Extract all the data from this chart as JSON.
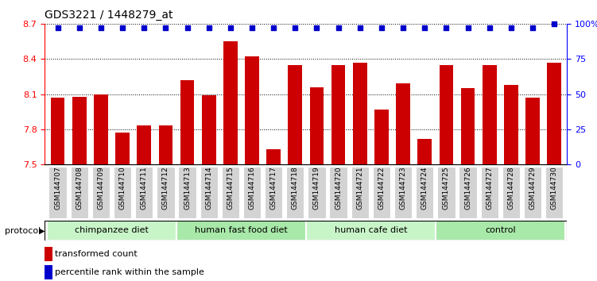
{
  "title": "GDS3221 / 1448279_at",
  "samples": [
    "GSM144707",
    "GSM144708",
    "GSM144709",
    "GSM144710",
    "GSM144711",
    "GSM144712",
    "GSM144713",
    "GSM144714",
    "GSM144715",
    "GSM144716",
    "GSM144717",
    "GSM144718",
    "GSM144719",
    "GSM144720",
    "GSM144721",
    "GSM144722",
    "GSM144723",
    "GSM144724",
    "GSM144725",
    "GSM144726",
    "GSM144727",
    "GSM144728",
    "GSM144729",
    "GSM144730"
  ],
  "bar_values": [
    8.07,
    8.08,
    8.1,
    7.77,
    7.83,
    7.83,
    8.22,
    8.09,
    8.55,
    8.42,
    7.63,
    8.35,
    8.16,
    8.35,
    8.37,
    7.97,
    8.19,
    7.72,
    8.35,
    8.15,
    8.35,
    8.18,
    8.07,
    8.37
  ],
  "percentile_values": [
    97,
    97,
    97,
    97,
    97,
    97,
    97,
    97,
    97,
    97,
    97,
    97,
    97,
    97,
    97,
    97,
    97,
    97,
    97,
    97,
    97,
    97,
    97,
    100
  ],
  "groups": [
    {
      "label": "chimpanzee diet",
      "start": 0,
      "end": 5
    },
    {
      "label": "human fast food diet",
      "start": 6,
      "end": 11
    },
    {
      "label": "human cafe diet",
      "start": 12,
      "end": 17
    },
    {
      "label": "control",
      "start": 18,
      "end": 23
    }
  ],
  "group_colors": [
    "#c8f5c8",
    "#a8e8a8",
    "#c8f5c8",
    "#a8e8a8"
  ],
  "ylim": [
    7.5,
    8.7
  ],
  "yticks": [
    7.5,
    7.8,
    8.1,
    8.4,
    8.7
  ],
  "ytick_labels": [
    "7.5",
    "7.8",
    "8.1",
    "8.4",
    "8.7"
  ],
  "right_yticks": [
    0,
    25,
    50,
    75,
    100
  ],
  "right_ytick_labels": [
    "0",
    "25",
    "50",
    "75",
    "100%"
  ],
  "bar_color": "#cc0000",
  "percentile_color": "#0000cc",
  "bar_width": 0.65,
  "grid_color": "black",
  "protocol_label": "protocol",
  "legend_bar_label": "transformed count",
  "legend_pct_label": "percentile rank within the sample",
  "background_color": "#ffffff",
  "tick_bg_color": "#d3d3d3"
}
